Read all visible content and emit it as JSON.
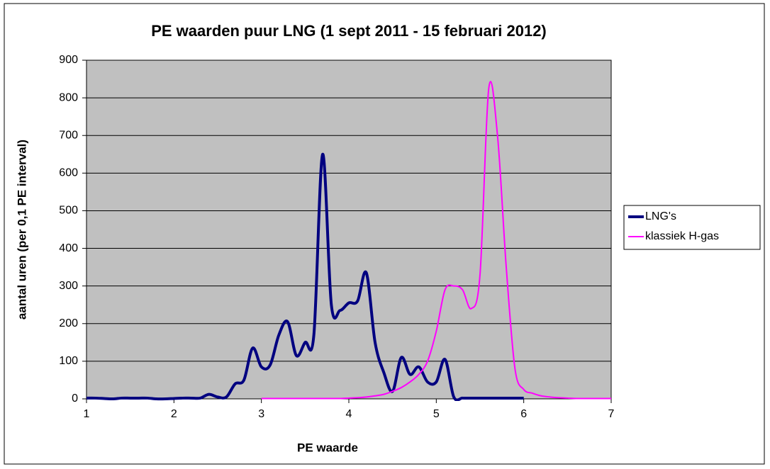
{
  "chart_data": {
    "type": "line",
    "title": "PE waarden puur LNG (1 sept 2011 - 15 februari 2012)",
    "x_label": "PE waarde",
    "y_label": "aantal uren (per 0,1 PE interval)",
    "xlim": [
      1,
      7
    ],
    "xticks": [
      1,
      2,
      3,
      4,
      5,
      6,
      7
    ],
    "ylim": [
      0,
      900
    ],
    "yticks": [
      0,
      100,
      200,
      300,
      400,
      500,
      600,
      700,
      800,
      900
    ],
    "grid": true,
    "legend": "right",
    "background": "#c0c0c0",
    "series": [
      {
        "name": "LNG's",
        "color": "#000080",
        "x": [
          1.0,
          1.1,
          1.2,
          1.3,
          1.4,
          1.5,
          1.6,
          1.7,
          1.8,
          1.9,
          2.0,
          2.1,
          2.2,
          2.3,
          2.4,
          2.5,
          2.6,
          2.7,
          2.8,
          2.9,
          3.0,
          3.1,
          3.2,
          3.3,
          3.4,
          3.5,
          3.6,
          3.7,
          3.8,
          3.9,
          4.0,
          4.1,
          4.2,
          4.3,
          4.4,
          4.5,
          4.6,
          4.7,
          4.8,
          4.9,
          5.0,
          5.1,
          5.2,
          5.3,
          5.4,
          5.5,
          5.6,
          5.7,
          5.8,
          5.9,
          6.0
        ],
        "values": [
          2,
          2,
          1,
          0,
          2,
          2,
          2,
          2,
          0,
          0,
          1,
          2,
          2,
          2,
          12,
          5,
          5,
          40,
          50,
          135,
          85,
          90,
          170,
          205,
          115,
          150,
          170,
          650,
          250,
          235,
          255,
          260,
          335,
          150,
          70,
          20,
          110,
          65,
          85,
          45,
          45,
          105,
          5,
          2,
          2,
          2,
          2,
          2,
          2,
          2,
          2
        ]
      },
      {
        "name": "klassiek H-gas",
        "color": "#ff00ff",
        "x": [
          3.0,
          3.1,
          3.2,
          3.3,
          3.4,
          3.5,
          3.6,
          3.7,
          3.8,
          3.9,
          4.0,
          4.1,
          4.2,
          4.3,
          4.4,
          4.5,
          4.6,
          4.7,
          4.8,
          4.9,
          5.0,
          5.1,
          5.2,
          5.3,
          5.4,
          5.5,
          5.6,
          5.7,
          5.8,
          5.9,
          6.0,
          6.1,
          6.2,
          6.3,
          6.4,
          6.5,
          6.6,
          6.7,
          6.8,
          6.9,
          7.0
        ],
        "values": [
          1,
          1,
          1,
          1,
          1,
          1,
          1,
          1,
          1,
          1,
          2,
          3,
          5,
          8,
          12,
          20,
          30,
          45,
          65,
          100,
          180,
          290,
          300,
          290,
          240,
          330,
          825,
          700,
          350,
          80,
          25,
          15,
          8,
          5,
          3,
          2,
          1,
          1,
          1,
          1,
          1
        ]
      }
    ]
  }
}
